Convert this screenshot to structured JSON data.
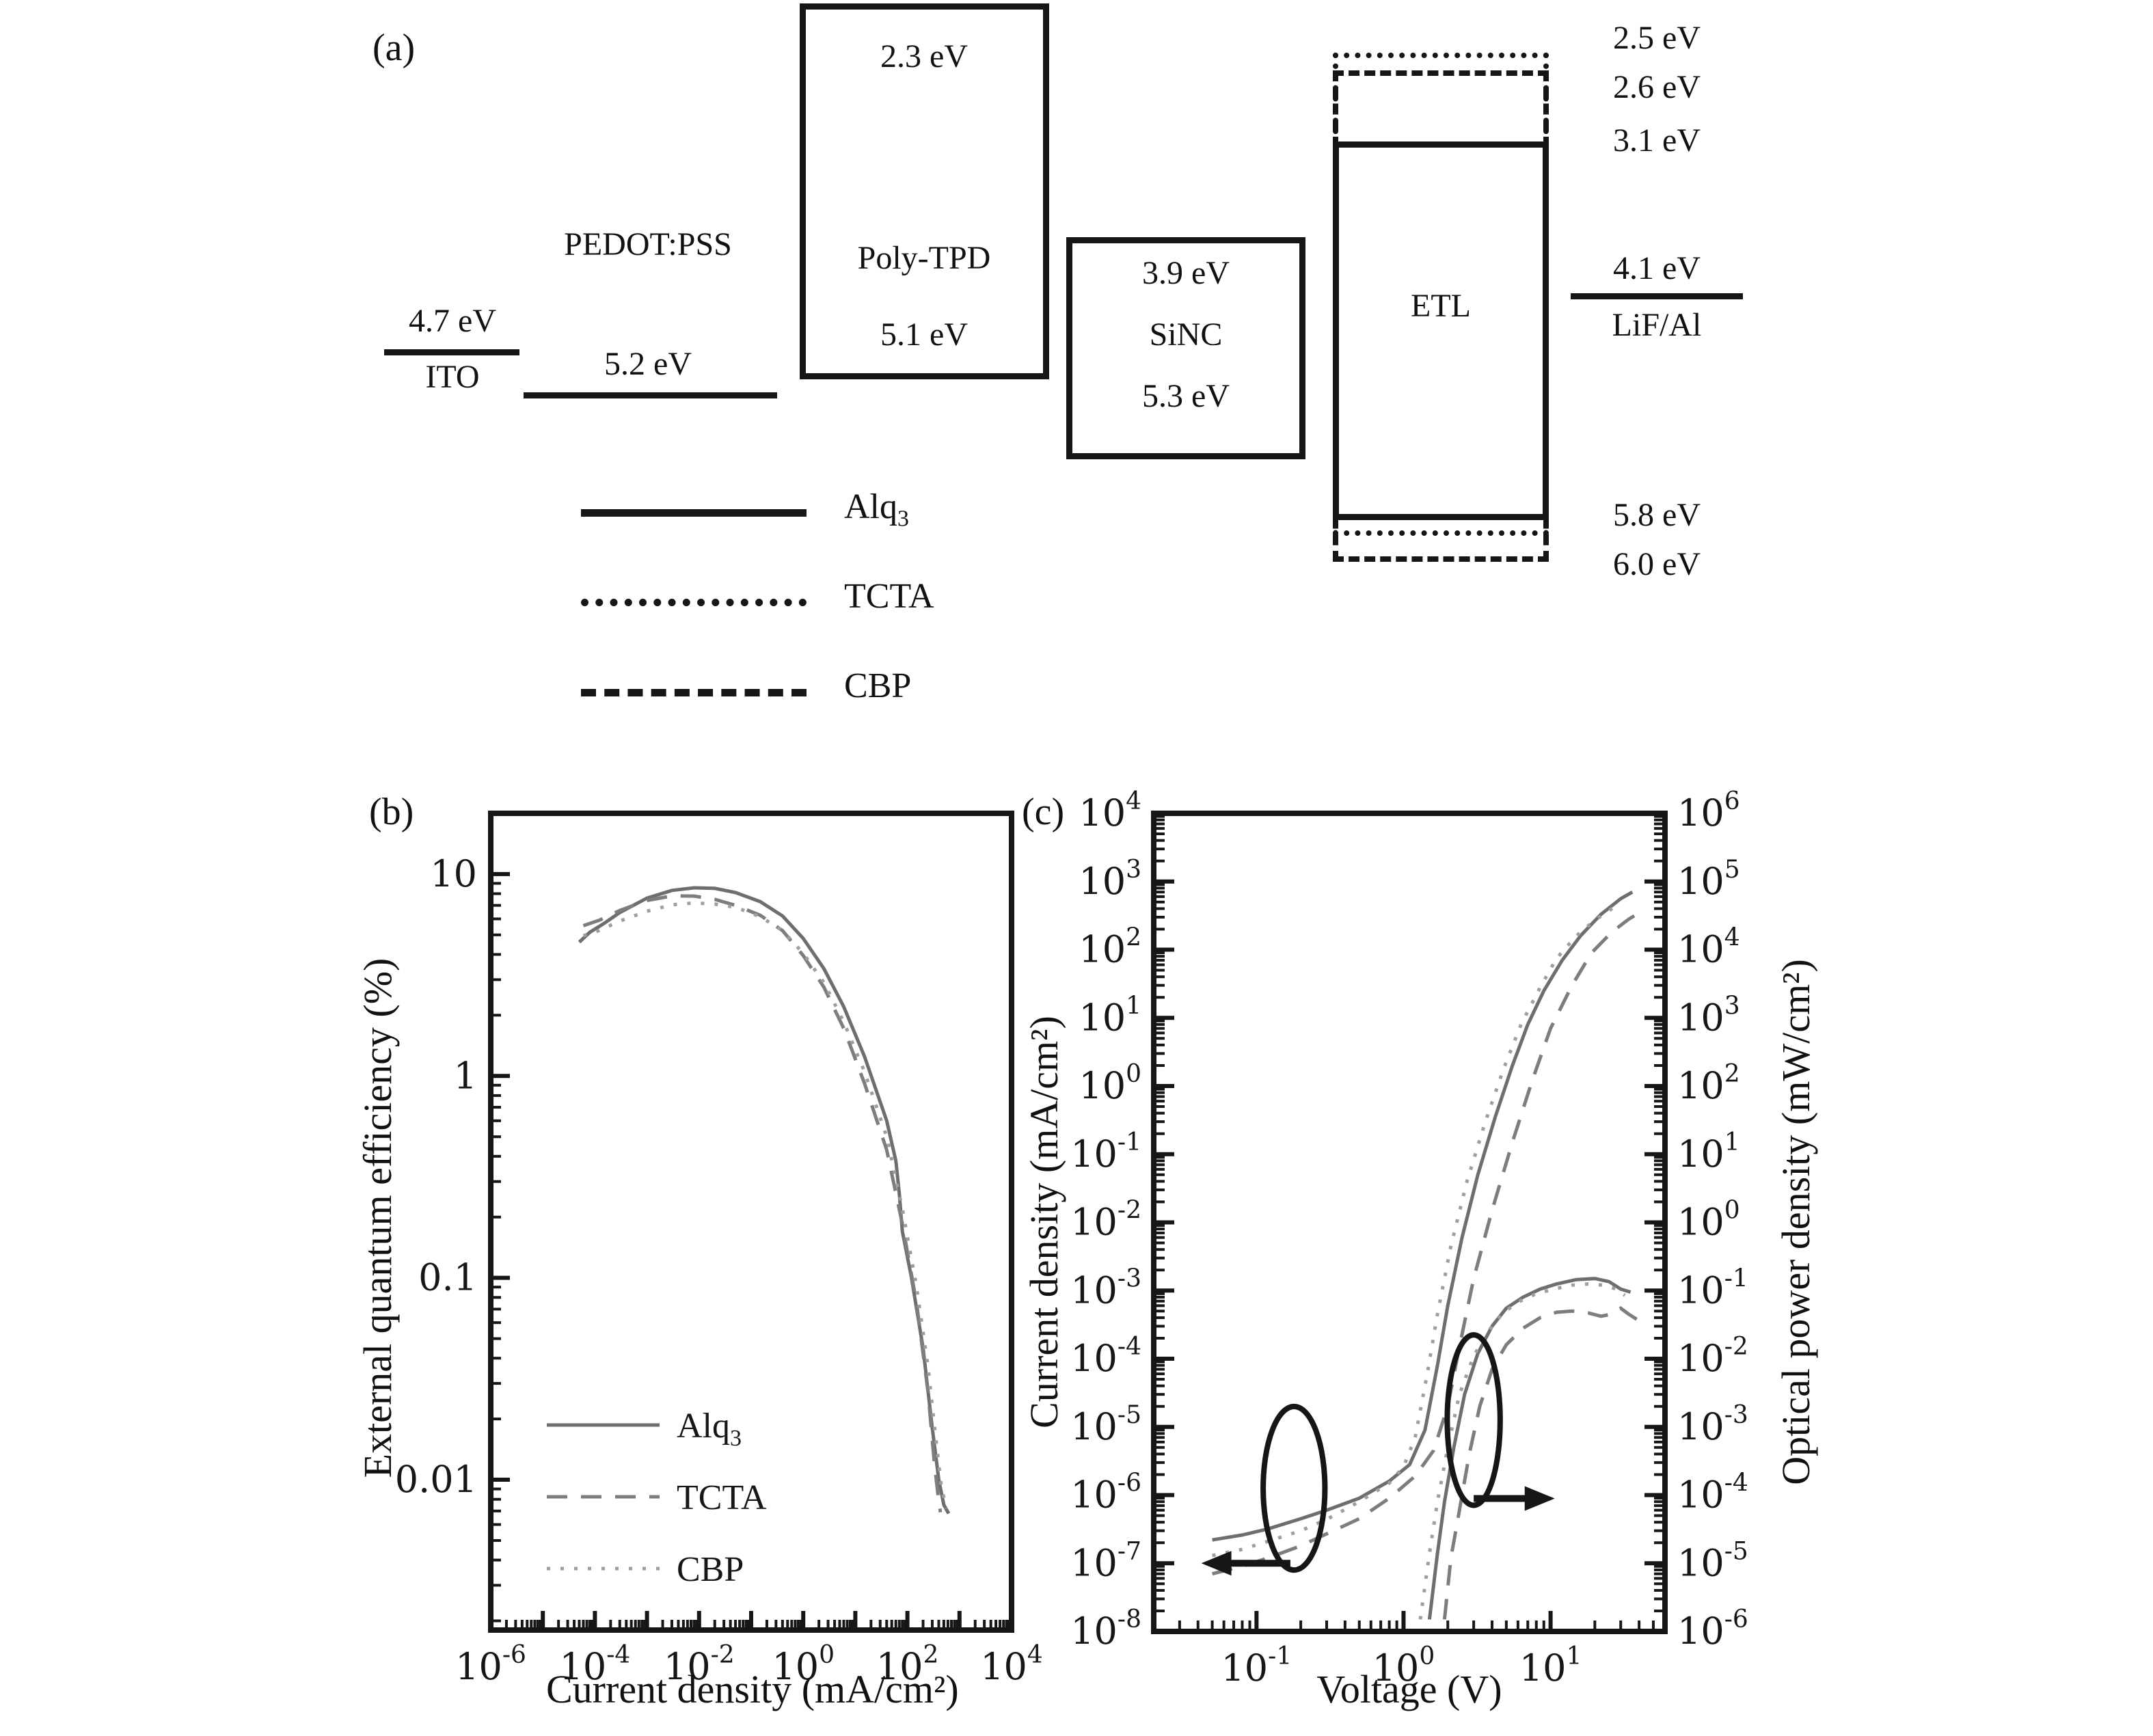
{
  "page": {
    "background": "#ffffff",
    "ink_color": "#161616",
    "curve_gray": "#6e6e6e"
  },
  "panel_a": {
    "label": "(a)",
    "ito": {
      "energy": "4.7 eV",
      "name": "ITO"
    },
    "pedot": {
      "name": "PEDOT:PSS",
      "energy": "5.2 eV"
    },
    "polytpd": {
      "name": "Poly-TPD",
      "top_energy": "2.3 eV",
      "bottom_energy": "5.1 eV"
    },
    "sinc": {
      "name": "SiNC",
      "top_energy": "3.9 eV",
      "bottom_energy": "5.3 eV"
    },
    "etl": {
      "name": "ETL",
      "lumo_levels": [
        {
          "value": "2.5 eV",
          "style": "dotted",
          "material": "TCTA"
        },
        {
          "value": "2.6 eV",
          "style": "dashed",
          "material": "CBP"
        },
        {
          "value": "3.1 eV",
          "style": "solid",
          "material": "Alq3"
        }
      ],
      "homo_levels": [
        {
          "value": "5.8 eV",
          "style": "solid",
          "material": "Alq3"
        },
        {
          "value": "6.0 eV",
          "style": "dashed",
          "material": "CBP"
        }
      ]
    },
    "cathode": {
      "energy": "4.1 eV",
      "name": "LiF/Al"
    },
    "legend": [
      {
        "base": "Alq",
        "sub": "3",
        "style": "solid"
      },
      {
        "base": "TCTA",
        "sub": "",
        "style": "dotted"
      },
      {
        "base": "CBP",
        "sub": "",
        "style": "dashed"
      }
    ]
  },
  "chart_data": [
    {
      "id": "b",
      "panel_label": "(b)",
      "type": "line",
      "x_scale": "log",
      "y_scale": "log",
      "xlabel": "Current density (mA/cm²)",
      "ylabel": "External quantum efficiency (%)",
      "xlim": [
        1e-06,
        10000.0
      ],
      "ylim": [
        0.0018,
        20
      ],
      "grid": false,
      "legend_position": "lower left",
      "x_tick_labels": [
        {
          "value": -6,
          "label": "10^-6"
        },
        {
          "value": -4,
          "label": "10^-4"
        },
        {
          "value": -2,
          "label": "10^-2"
        },
        {
          "value": 0,
          "label": "10^0"
        },
        {
          "value": 2,
          "label": "10^2"
        },
        {
          "value": 4,
          "label": "10^4"
        }
      ],
      "y_tick_labels": [
        {
          "value": 1,
          "label": "10"
        },
        {
          "value": 0,
          "label": "1"
        },
        {
          "value": -1,
          "label": "0.1"
        },
        {
          "value": -2,
          "label": "0.01"
        }
      ],
      "series": [
        {
          "name": "Alq3",
          "name_base": "Alq",
          "name_sub": "3",
          "style": "solid",
          "color": "#6e6e6e",
          "points": [
            [
              5e-05,
              4.6
            ],
            [
              8e-05,
              5.15
            ],
            [
              0.00015,
              5.7
            ],
            [
              0.0003,
              6.45
            ],
            [
              0.001,
              7.6
            ],
            [
              0.003,
              8.3
            ],
            [
              0.008,
              8.55
            ],
            [
              0.02,
              8.5
            ],
            [
              0.05,
              8.1
            ],
            [
              0.15,
              7.3
            ],
            [
              0.4,
              6.2
            ],
            [
              1,
              4.8
            ],
            [
              2.5,
              3.4
            ],
            [
              6,
              2.2
            ],
            [
              15,
              1.25
            ],
            [
              40,
              0.6
            ],
            [
              60,
              0.38
            ],
            [
              70,
              0.26
            ],
            [
              80,
              0.17
            ],
            [
              120,
              0.1
            ],
            [
              200,
              0.045
            ],
            [
              300,
              0.018
            ],
            [
              400,
              0.01
            ],
            [
              500,
              0.0075
            ],
            [
              620,
              0.0068
            ]
          ]
        },
        {
          "name": "TCTA",
          "name_base": "TCTA",
          "name_sub": "",
          "style": "dashed",
          "color": "#7d7d7d",
          "points": [
            [
              6e-05,
              5.55
            ],
            [
              0.00012,
              5.9
            ],
            [
              0.0003,
              6.6
            ],
            [
              0.001,
              7.4
            ],
            [
              0.003,
              7.8
            ],
            [
              0.008,
              7.78
            ],
            [
              0.02,
              7.5
            ],
            [
              0.05,
              7.0
            ],
            [
              0.15,
              6.25
            ],
            [
              0.4,
              5.25
            ],
            [
              1,
              3.95
            ],
            [
              2.5,
              2.75
            ],
            [
              6,
              1.72
            ],
            [
              15,
              0.92
            ],
            [
              40,
              0.43
            ],
            [
              80,
              0.185
            ],
            [
              150,
              0.075
            ],
            [
              250,
              0.027
            ],
            [
              330,
              0.012
            ],
            [
              400,
              0.0078
            ],
            [
              430,
              0.0069
            ]
          ]
        },
        {
          "name": "CBP",
          "name_base": "CBP",
          "name_sub": "",
          "style": "dotted",
          "color": "#9e9e9e",
          "points": [
            [
              6e-05,
              4.95
            ],
            [
              0.00012,
              5.25
            ],
            [
              0.0003,
              5.85
            ],
            [
              0.001,
              6.55
            ],
            [
              0.003,
              7.05
            ],
            [
              0.008,
              7.2
            ],
            [
              0.02,
              7.1
            ],
            [
              0.05,
              6.85
            ],
            [
              0.15,
              6.15
            ],
            [
              0.4,
              5.25
            ],
            [
              1,
              4.05
            ],
            [
              2.5,
              2.9
            ],
            [
              6,
              1.85
            ],
            [
              15,
              1.05
            ],
            [
              40,
              0.5
            ],
            [
              80,
              0.22
            ],
            [
              150,
              0.09
            ],
            [
              250,
              0.036
            ],
            [
              350,
              0.016
            ],
            [
              450,
              0.0092
            ],
            [
              560,
              0.0072
            ]
          ]
        }
      ]
    },
    {
      "id": "c",
      "panel_label": "(c)",
      "type": "line",
      "x_scale": "log",
      "y_scale": "log",
      "xlabel": "Voltage (V)",
      "ylabel_left": "Current density (mA/cm²)",
      "ylabel_right": "Optical power density (mW/cm²)",
      "xlim": [
        0.02,
        60
      ],
      "ylim_left": [
        1e-08,
        10000.0
      ],
      "ylim_right": [
        1e-06,
        1000000.0
      ],
      "grid": false,
      "x_tick_labels": [
        {
          "value": -1,
          "label": "10^-1"
        },
        {
          "value": 0,
          "label": "10^0"
        },
        {
          "value": 1,
          "label": "10^1"
        }
      ],
      "y_left_tick_labels": [
        {
          "value": 4,
          "label": "10^4"
        },
        {
          "value": 3,
          "label": "10^3"
        },
        {
          "value": 2,
          "label": "10^2"
        },
        {
          "value": 1,
          "label": "10^1"
        },
        {
          "value": 0,
          "label": "10^0"
        },
        {
          "value": -1,
          "label": "10^-1"
        },
        {
          "value": -2,
          "label": "10^-2"
        },
        {
          "value": -3,
          "label": "10^-3"
        },
        {
          "value": -4,
          "label": "10^-4"
        },
        {
          "value": -5,
          "label": "10^-5"
        },
        {
          "value": -6,
          "label": "10^-6"
        },
        {
          "value": -7,
          "label": "10^-7"
        },
        {
          "value": -8,
          "label": "10^-8"
        }
      ],
      "y_right_tick_labels": [
        {
          "value": 6,
          "label": "10^6"
        },
        {
          "value": 5,
          "label": "10^5"
        },
        {
          "value": 4,
          "label": "10^4"
        },
        {
          "value": 3,
          "label": "10^3"
        },
        {
          "value": 2,
          "label": "10^2"
        },
        {
          "value": 1,
          "label": "10^1"
        },
        {
          "value": 0,
          "label": "10^0"
        },
        {
          "value": -1,
          "label": "10^-1"
        },
        {
          "value": -2,
          "label": "10^-2"
        },
        {
          "value": -3,
          "label": "10^-3"
        },
        {
          "value": -4,
          "label": "10^-4"
        },
        {
          "value": -5,
          "label": "10^-5"
        },
        {
          "value": -6,
          "label": "10^-6"
        }
      ],
      "series_current": [
        {
          "name": "Alq3",
          "style": "solid",
          "color": "#6e6e6e",
          "points": [
            [
              0.05,
              2.2e-07
            ],
            [
              0.08,
              2.6e-07
            ],
            [
              0.12,
              3.2e-07
            ],
            [
              0.2,
              4.5e-07
            ],
            [
              0.3,
              6e-07
            ],
            [
              0.5,
              9e-07
            ],
            [
              0.8,
              1.6e-06
            ],
            [
              1.1,
              2.8e-06
            ],
            [
              1.4,
              9e-06
            ],
            [
              1.7,
              8e-05
            ],
            [
              2.0,
              0.0006
            ],
            [
              2.5,
              0.006
            ],
            [
              3.2,
              0.05
            ],
            [
              4.2,
              0.35
            ],
            [
              5.5,
              2
            ],
            [
              7,
              8
            ],
            [
              9,
              25
            ],
            [
              12,
              70
            ],
            [
              16,
              160
            ],
            [
              22,
              330
            ],
            [
              30,
              560
            ],
            [
              36,
              700
            ]
          ]
        },
        {
          "name": "TCTA",
          "style": "dashed",
          "color": "#7d7d7d",
          "points": [
            [
              0.05,
              7e-08
            ],
            [
              0.08,
              9e-08
            ],
            [
              0.12,
              1.2e-07
            ],
            [
              0.2,
              1.8e-07
            ],
            [
              0.3,
              2.7e-07
            ],
            [
              0.5,
              4.5e-07
            ],
            [
              0.8,
              9e-07
            ],
            [
              1.2,
              1.9e-06
            ],
            [
              1.6,
              4.5e-06
            ],
            [
              2.0,
              2e-05
            ],
            [
              2.4,
              0.00015
            ],
            [
              3.0,
              0.0015
            ],
            [
              4.0,
              0.015
            ],
            [
              5.5,
              0.15
            ],
            [
              7.5,
              1.2
            ],
            [
              10,
              7
            ],
            [
              14,
              30
            ],
            [
              19,
              90
            ],
            [
              26,
              180
            ],
            [
              34,
              280
            ],
            [
              43,
              380
            ]
          ]
        },
        {
          "name": "CBP",
          "style": "dotted",
          "color": "#9e9e9e",
          "points": [
            [
              0.05,
              1.3e-07
            ],
            [
              0.08,
              1.6e-07
            ],
            [
              0.12,
              2.1e-07
            ],
            [
              0.2,
              3e-07
            ],
            [
              0.3,
              4.4e-07
            ],
            [
              0.5,
              8e-07
            ],
            [
              0.8,
              1.5e-06
            ],
            [
              1.0,
              2.6e-06
            ],
            [
              1.2,
              7e-06
            ],
            [
              1.45,
              6e-05
            ],
            [
              1.7,
              0.00045
            ],
            [
              2.1,
              0.0045
            ],
            [
              2.7,
              0.04
            ],
            [
              3.6,
              0.3
            ],
            [
              4.8,
              1.8
            ],
            [
              6.3,
              8
            ],
            [
              8.5,
              28
            ],
            [
              11,
              75
            ],
            [
              15,
              160
            ],
            [
              20,
              270
            ],
            [
              27,
              420
            ]
          ]
        }
      ],
      "series_optical": [
        {
          "name": "Alq3",
          "style": "solid",
          "color": "#6e6e6e",
          "points": [
            [
              1.5,
              1.5e-08
            ],
            [
              1.7,
              1.4e-07
            ],
            [
              1.9,
              8e-07
            ],
            [
              2.2,
              5e-06
            ],
            [
              2.6,
              3e-05
            ],
            [
              3.2,
              0.00012
            ],
            [
              4,
              0.0003
            ],
            [
              5,
              0.00055
            ],
            [
              6.5,
              0.0008
            ],
            [
              8.5,
              0.00105
            ],
            [
              11,
              0.00125
            ],
            [
              15,
              0.00145
            ],
            [
              20,
              0.0015
            ],
            [
              25,
              0.00135
            ],
            [
              30,
              0.00105
            ],
            [
              35,
              0.00095
            ]
          ]
        },
        {
          "name": "TCTA",
          "style": "dashed",
          "color": "#7d7d7d",
          "points": [
            [
              1.9,
              1.5e-08
            ],
            [
              2.1,
              1.2e-07
            ],
            [
              2.4,
              6e-07
            ],
            [
              2.8,
              4e-06
            ],
            [
              3.3,
              2e-05
            ],
            [
              4,
              7e-05
            ],
            [
              5,
              0.00016
            ],
            [
              6.5,
              0.00028
            ],
            [
              8.5,
              0.0004
            ],
            [
              11,
              0.00048
            ],
            [
              14,
              0.0005
            ],
            [
              18,
              0.00047
            ],
            [
              22,
              0.00042
            ],
            [
              26,
              0.00045
            ],
            [
              30,
              0.00055
            ],
            [
              34,
              0.00045
            ],
            [
              40,
              0.00036
            ]
          ]
        },
        {
          "name": "CBP",
          "style": "dotted",
          "color": "#9e9e9e",
          "points": [
            [
              1.3,
              1.5e-08
            ],
            [
              1.5,
              1.4e-07
            ],
            [
              1.7,
              8e-07
            ],
            [
              2.0,
              5e-06
            ],
            [
              2.4,
              3e-05
            ],
            [
              3.0,
              0.00011
            ],
            [
              3.8,
              0.00026
            ],
            [
              4.8,
              0.00048
            ],
            [
              6.2,
              0.0007
            ],
            [
              8,
              0.0009
            ],
            [
              10.5,
              0.00105
            ],
            [
              14,
              0.0012
            ],
            [
              18,
              0.00125
            ],
            [
              23,
              0.0012
            ],
            [
              28,
              0.00105
            ],
            [
              32,
              0.00085
            ]
          ]
        }
      ],
      "annotations": [
        {
          "type": "ellipse",
          "group": "current-density",
          "cx": 0.18,
          "cy_exp": -5.9,
          "rx_dec": 0.21,
          "ry_dec": 1.2
        },
        {
          "type": "arrow",
          "group": "current-density",
          "direction": "left",
          "y_exp": -7.0,
          "x_from": 0.17,
          "x_to": 0.05
        },
        {
          "type": "ellipse",
          "group": "optical-power",
          "cx": 3.0,
          "cy_exp": -4.9,
          "rx_dec": 0.18,
          "ry_dec": 1.25
        },
        {
          "type": "arrow",
          "group": "optical-power",
          "direction": "right",
          "y_exp": -6.05,
          "x_from": 3.0,
          "x_to": 9.0
        }
      ]
    }
  ]
}
